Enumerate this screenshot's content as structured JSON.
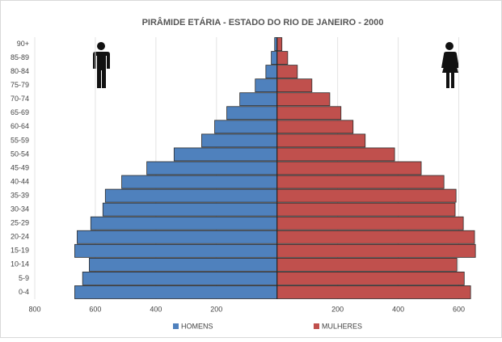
{
  "chart_data": {
    "type": "pyramid",
    "title": "PIRÂMIDE ETÁRIA - ESTADO DO RIO DE JANEIRO - 2000",
    "categories": [
      "0-4",
      "5-9",
      "10-14",
      "15-19",
      "20-24",
      "25-29",
      "30-34",
      "35-39",
      "40-44",
      "45-49",
      "50-54",
      "55-59",
      "60-64",
      "65-69",
      "70-74",
      "75-79",
      "80-84",
      "85-89",
      "90+"
    ],
    "series": [
      {
        "name": "HOMENS",
        "color": "#4f81bd",
        "side": "left",
        "values": [
          668,
          642,
          620,
          668,
          660,
          615,
          575,
          567,
          513,
          430,
          340,
          249,
          206,
          166,
          123,
          72,
          37,
          19,
          8
        ]
      },
      {
        "name": "MULHERES",
        "color": "#c0504d",
        "side": "right",
        "values": [
          639,
          618,
          594,
          655,
          652,
          615,
          588,
          591,
          551,
          476,
          388,
          291,
          251,
          211,
          174,
          115,
          67,
          35,
          16
        ]
      }
    ],
    "xlim": [
      -800,
      700
    ],
    "xticks": [
      {
        "value": -800,
        "label": "800"
      },
      {
        "value": -600,
        "label": "600"
      },
      {
        "value": -400,
        "label": "400"
      },
      {
        "value": -200,
        "label": "200"
      },
      200,
      400,
      600
    ],
    "grid": true,
    "legend": "bottom"
  }
}
